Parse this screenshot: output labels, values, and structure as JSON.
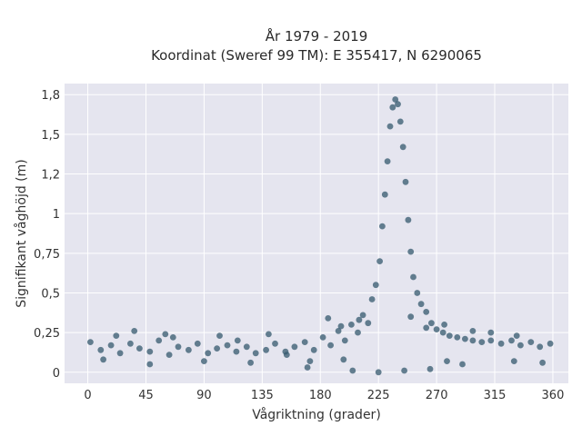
{
  "chart_data": {
    "type": "scatter",
    "title_line1": "År 1979 - 2019",
    "title_line2": "Koordinat (Sweref 99 TM): E 355417, N 6290065",
    "xlabel": "Vågriktning (grader)",
    "ylabel": "Signifikant våghöjd (m)",
    "xlim": [
      -18,
      372
    ],
    "ylim": [
      -0.07,
      1.82
    ],
    "xticks": [
      0,
      45,
      90,
      135,
      180,
      225,
      270,
      315,
      360
    ],
    "xtick_labels": [
      "0",
      "45",
      "90",
      "135",
      "180",
      "225",
      "270",
      "315",
      "360"
    ],
    "yticks": [
      0,
      0.25,
      0.5,
      0.75,
      1,
      1.25,
      1.5,
      1.75
    ],
    "ytick_labels": [
      "0",
      "0,25",
      "0,5",
      "0,75",
      "1",
      "1,2",
      "1,5",
      "1,8"
    ],
    "grid": true,
    "point_color": "#34586e",
    "background_color": "#e5e5ef",
    "series": [
      {
        "name": "",
        "points": [
          [
            2,
            0.19
          ],
          [
            10,
            0.14
          ],
          [
            18,
            0.17
          ],
          [
            25,
            0.12
          ],
          [
            33,
            0.18
          ],
          [
            40,
            0.15
          ],
          [
            48,
            0.13
          ],
          [
            55,
            0.2
          ],
          [
            63,
            0.11
          ],
          [
            70,
            0.16
          ],
          [
            78,
            0.14
          ],
          [
            85,
            0.18
          ],
          [
            93,
            0.12
          ],
          [
            100,
            0.15
          ],
          [
            108,
            0.17
          ],
          [
            115,
            0.13
          ],
          [
            123,
            0.16
          ],
          [
            130,
            0.12
          ],
          [
            138,
            0.14
          ],
          [
            145,
            0.18
          ],
          [
            153,
            0.13
          ],
          [
            160,
            0.16
          ],
          [
            168,
            0.19
          ],
          [
            175,
            0.14
          ],
          [
            182,
            0.22
          ],
          [
            188,
            0.17
          ],
          [
            194,
            0.26
          ],
          [
            199,
            0.2
          ],
          [
            204,
            0.3
          ],
          [
            209,
            0.25
          ],
          [
            213,
            0.36
          ],
          [
            217,
            0.31
          ],
          [
            220,
            0.46
          ],
          [
            223,
            0.55
          ],
          [
            226,
            0.7
          ],
          [
            228,
            0.92
          ],
          [
            230,
            1.12
          ],
          [
            232,
            1.33
          ],
          [
            234,
            1.55
          ],
          [
            236,
            1.67
          ],
          [
            238,
            1.72
          ],
          [
            240,
            1.69
          ],
          [
            242,
            1.58
          ],
          [
            244,
            1.42
          ],
          [
            246,
            1.2
          ],
          [
            248,
            0.96
          ],
          [
            250,
            0.76
          ],
          [
            252,
            0.6
          ],
          [
            255,
            0.5
          ],
          [
            258,
            0.43
          ],
          [
            262,
            0.38
          ],
          [
            266,
            0.31
          ],
          [
            270,
            0.27
          ],
          [
            275,
            0.25
          ],
          [
            280,
            0.23
          ],
          [
            286,
            0.22
          ],
          [
            292,
            0.21
          ],
          [
            298,
            0.2
          ],
          [
            305,
            0.19
          ],
          [
            312,
            0.2
          ],
          [
            320,
            0.18
          ],
          [
            328,
            0.2
          ],
          [
            335,
            0.17
          ],
          [
            343,
            0.19
          ],
          [
            350,
            0.16
          ],
          [
            358,
            0.18
          ],
          [
            12,
            0.08
          ],
          [
            48,
            0.05
          ],
          [
            90,
            0.07
          ],
          [
            126,
            0.06
          ],
          [
            170,
            0.03
          ],
          [
            205,
            0.01
          ],
          [
            225,
            0.0
          ],
          [
            245,
            0.01
          ],
          [
            265,
            0.02
          ],
          [
            290,
            0.05
          ],
          [
            330,
            0.07
          ],
          [
            352,
            0.06
          ],
          [
            154,
            0.11
          ],
          [
            172,
            0.07
          ],
          [
            198,
            0.08
          ],
          [
            278,
            0.07
          ],
          [
            22,
            0.23
          ],
          [
            66,
            0.22
          ],
          [
            116,
            0.2
          ],
          [
            140,
            0.24
          ],
          [
            186,
            0.34
          ],
          [
            196,
            0.29
          ],
          [
            210,
            0.33
          ],
          [
            250,
            0.35
          ],
          [
            262,
            0.28
          ],
          [
            276,
            0.3
          ],
          [
            298,
            0.26
          ],
          [
            312,
            0.25
          ],
          [
            332,
            0.23
          ],
          [
            36,
            0.26
          ],
          [
            60,
            0.24
          ],
          [
            102,
            0.23
          ]
        ]
      }
    ]
  }
}
